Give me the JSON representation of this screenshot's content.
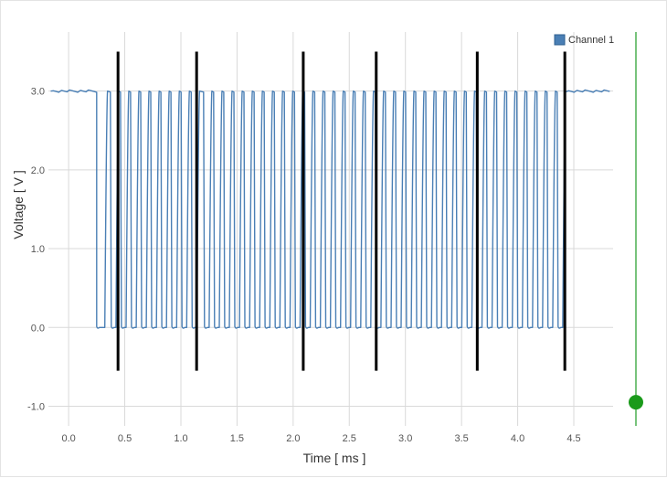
{
  "chart_data": {
    "type": "line",
    "title": "",
    "xlabel": "Time [ ms ]",
    "ylabel": "Voltage [ V ]",
    "xlim": [
      -0.18,
      4.85
    ],
    "ylim": [
      -1.25,
      3.75
    ],
    "x_ticks": [
      0.0,
      0.5,
      1.0,
      1.5,
      2.0,
      2.5,
      3.0,
      3.5,
      4.0,
      4.5
    ],
    "x_tick_labels": [
      "0.0",
      "0.5",
      "1.0",
      "1.5",
      "2.0",
      "2.5",
      "3.0",
      "3.5",
      "4.0",
      "4.5"
    ],
    "y_ticks": [
      -1.0,
      0.0,
      1.0,
      2.0,
      3.0
    ],
    "y_tick_labels": [
      "-1.0",
      "0.0",
      "1.0",
      "2.0",
      "3.0"
    ],
    "grid": true,
    "legend": {
      "position": "top-right",
      "entries": [
        "Channel 1"
      ]
    },
    "series": [
      {
        "name": "Channel 1",
        "color": "#4a7fb5",
        "high_level": 3.0,
        "low_level": 0.0,
        "idle_high_until": 0.25,
        "idle_high_from": 4.43,
        "pulses": [
          [
            0.25,
            0.33
          ],
          [
            0.38,
            0.43
          ],
          [
            0.47,
            0.52
          ],
          [
            0.56,
            0.61
          ],
          [
            0.65,
            0.7
          ],
          [
            0.74,
            0.79
          ],
          [
            0.83,
            0.88
          ],
          [
            0.92,
            0.97
          ],
          [
            1.01,
            1.06
          ],
          [
            1.1,
            1.15
          ],
          [
            1.21,
            1.26
          ],
          [
            1.3,
            1.35
          ],
          [
            1.39,
            1.44
          ],
          [
            1.48,
            1.53
          ],
          [
            1.57,
            1.62
          ],
          [
            1.66,
            1.71
          ],
          [
            1.75,
            1.8
          ],
          [
            1.84,
            1.89
          ],
          [
            1.93,
            1.98
          ],
          [
            2.02,
            2.07
          ],
          [
            2.11,
            2.16
          ],
          [
            2.2,
            2.25
          ],
          [
            2.29,
            2.34
          ],
          [
            2.38,
            2.43
          ],
          [
            2.47,
            2.52
          ],
          [
            2.56,
            2.61
          ],
          [
            2.65,
            2.7
          ],
          [
            2.74,
            2.79
          ],
          [
            2.83,
            2.88
          ],
          [
            2.92,
            2.97
          ],
          [
            3.01,
            3.06
          ],
          [
            3.1,
            3.15
          ],
          [
            3.19,
            3.24
          ],
          [
            3.28,
            3.33
          ],
          [
            3.37,
            3.42
          ],
          [
            3.46,
            3.51
          ],
          [
            3.55,
            3.6
          ],
          [
            3.64,
            3.69
          ],
          [
            3.73,
            3.78
          ],
          [
            3.82,
            3.87
          ],
          [
            3.91,
            3.96
          ],
          [
            4.0,
            4.05
          ],
          [
            4.09,
            4.14
          ],
          [
            4.18,
            4.23
          ],
          [
            4.27,
            4.32
          ],
          [
            4.36,
            4.41
          ]
        ]
      }
    ],
    "markers": {
      "color": "#000000",
      "x": [
        0.44,
        1.14,
        2.09,
        2.74,
        3.64,
        4.42
      ],
      "y_range": [
        -0.55,
        3.5
      ]
    },
    "cursor": {
      "color": "#4caf50",
      "handle_color": "#1a9a1a",
      "value": -0.95
    }
  }
}
